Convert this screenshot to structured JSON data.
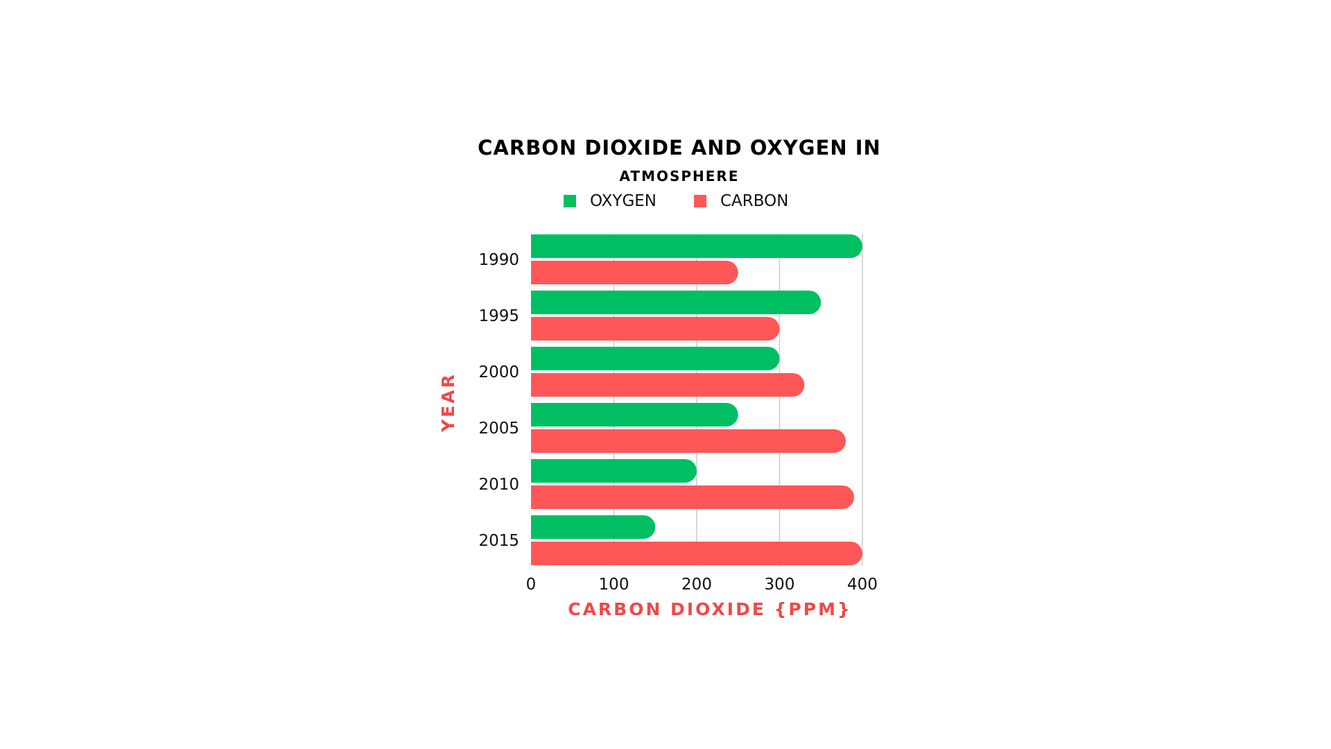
{
  "chart_data": {
    "type": "bar",
    "orientation": "horizontal",
    "title": "CARBON DIOXIDE AND OXYGEN IN",
    "subtitle": "ATMOSPHERE",
    "xlabel": "CARBON DIOXIDE {PPM}",
    "ylabel": "YEAR",
    "categories": [
      "1990",
      "1995",
      "2000",
      "2005",
      "2010",
      "2015"
    ],
    "series": [
      {
        "name": "OXYGEN",
        "color": "#00bf63",
        "values": [
          400,
          350,
          300,
          250,
          200,
          150
        ]
      },
      {
        "name": "CARBON",
        "color": "#ff5757",
        "values": [
          250,
          300,
          330,
          380,
          390,
          400
        ]
      }
    ],
    "xlim": [
      0,
      400
    ],
    "xticks": [
      "0",
      "100",
      "200",
      "300",
      "400"
    ],
    "grid": true,
    "legend_position": "top"
  }
}
